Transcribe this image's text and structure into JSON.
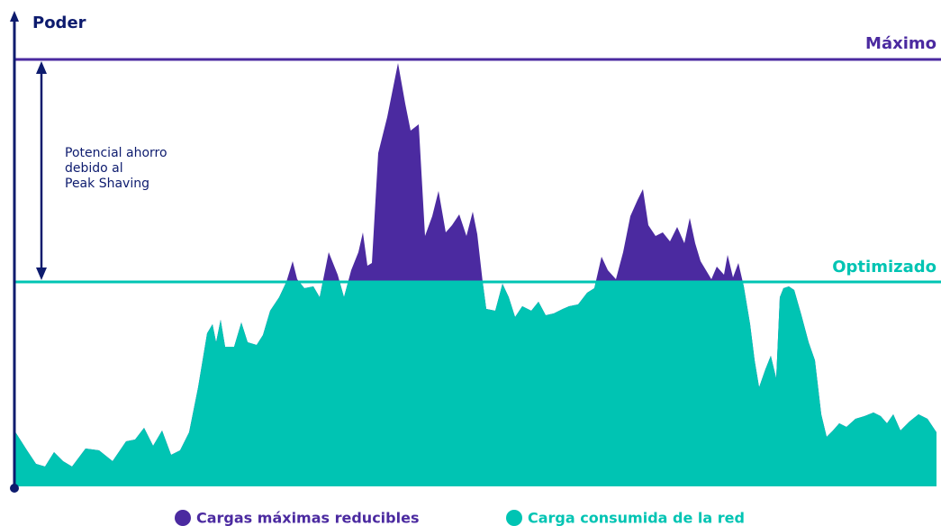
{
  "axis_label": "Poder",
  "lines": {
    "maximum": "Máximo",
    "optimized": "Optimizado"
  },
  "annotation": [
    "Potencial ahorro",
    "debido al",
    "Peak Shaving"
  ],
  "legend": [
    "Cargas máximas reducibles",
    "Carga consumida de la red"
  ]
}
